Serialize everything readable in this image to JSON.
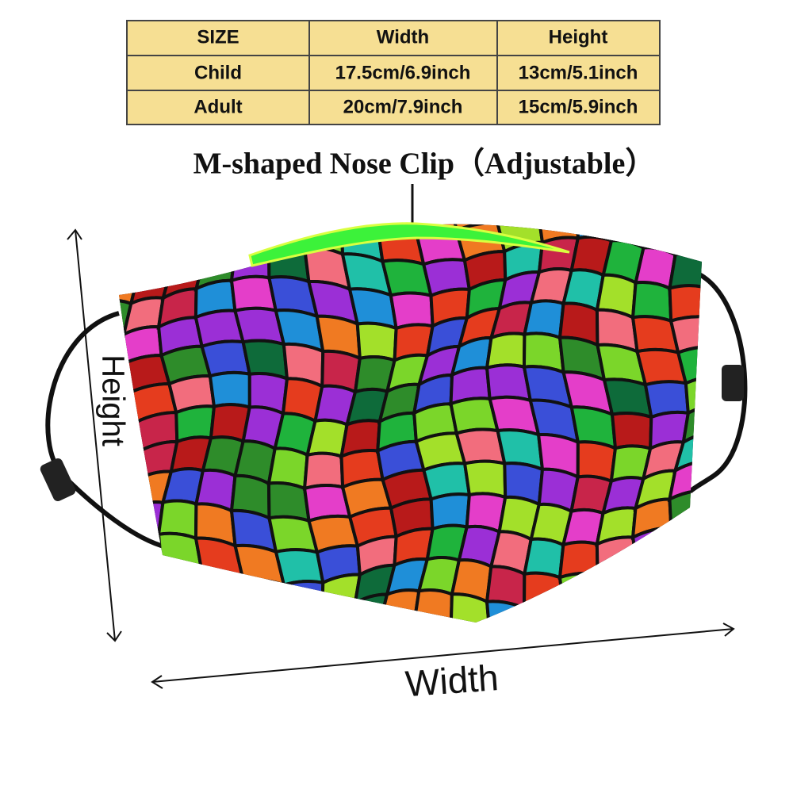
{
  "table": {
    "header": [
      "SIZE",
      "Width",
      "Height"
    ],
    "rows": [
      [
        "Child",
        "17.5cm/6.9inch",
        "13cm/5.1inch"
      ],
      [
        "Adult",
        "20cm/7.9inch",
        "15cm/5.9inch"
      ]
    ]
  },
  "annotations": {
    "nose_clip": "M-shaped Nose Clip（Adjustable）",
    "height": "Height",
    "width": "Width"
  }
}
